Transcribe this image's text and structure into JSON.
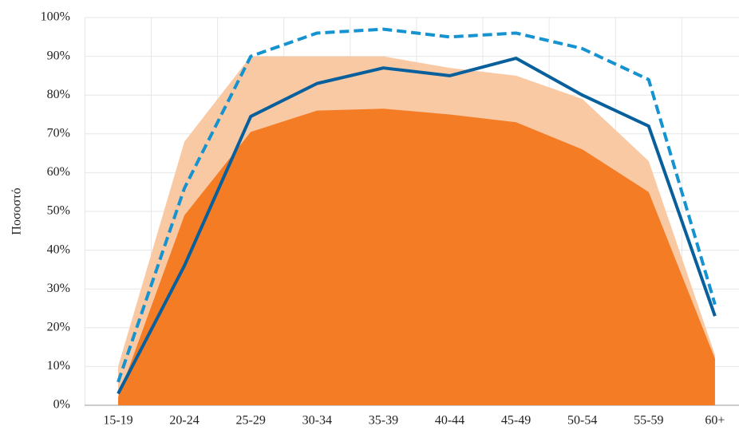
{
  "chart_data": {
    "type": "area-line",
    "y_label": "Ποσοστό",
    "categories": [
      "15-19",
      "20-24",
      "25-29",
      "30-34",
      "35-39",
      "40-44",
      "45-49",
      "50-54",
      "55-59",
      "60+"
    ],
    "series": [
      {
        "kind": "area",
        "color": "#f9c9a4",
        "values": [
          10,
          68,
          90,
          90,
          90,
          87,
          85,
          79,
          63,
          13
        ]
      },
      {
        "kind": "area",
        "color": "#f47c25",
        "values": [
          2,
          49,
          70.5,
          76,
          76.5,
          75,
          73,
          66,
          55,
          12
        ]
      },
      {
        "kind": "line",
        "color": "#07609c",
        "dash": false,
        "values": [
          3,
          36,
          74.5,
          83,
          87,
          85,
          89.5,
          80,
          72,
          23
        ]
      },
      {
        "kind": "line",
        "color": "#1592d0",
        "dash": true,
        "values": [
          6,
          56,
          90,
          96,
          97,
          95,
          96,
          92,
          84,
          26
        ]
      }
    ],
    "ylim": [
      0,
      100
    ],
    "yticks": [
      {
        "value": 0,
        "label": "0%"
      },
      {
        "value": 10,
        "label": "10%"
      },
      {
        "value": 20,
        "label": "20%"
      },
      {
        "value": 30,
        "label": "30%"
      },
      {
        "value": 40,
        "label": "40%"
      },
      {
        "value": 50,
        "label": "50%"
      },
      {
        "value": 60,
        "label": "60%"
      },
      {
        "value": 70,
        "label": "70%"
      },
      {
        "value": 80,
        "label": "80%"
      },
      {
        "value": 90,
        "label": "90%"
      },
      {
        "value": 100,
        "label": "100%"
      }
    ],
    "grid": true
  }
}
